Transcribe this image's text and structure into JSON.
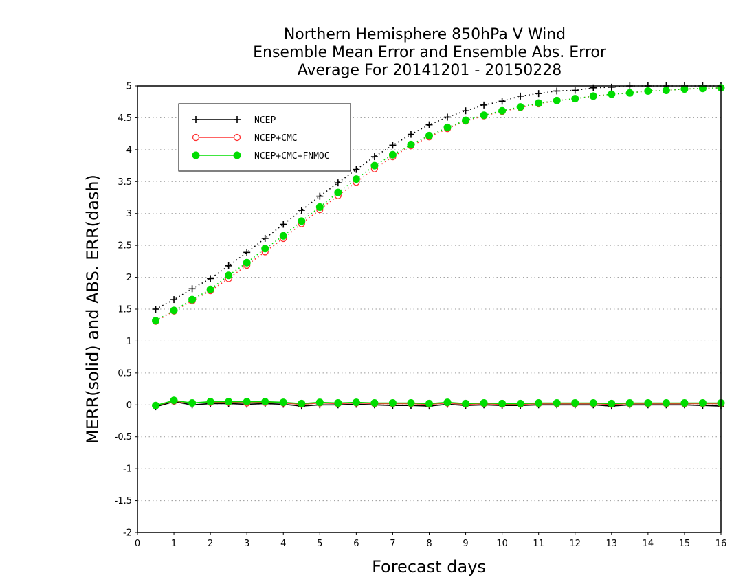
{
  "chart_data": {
    "type": "line",
    "title": [
      "Northern Hemisphere 850hPa V Wind",
      "Ensemble Mean Error and Ensemble Abs. Error",
      "Average For 20141201 - 20150228"
    ],
    "xlabel": "Forecast days",
    "ylabel": "MERR(solid) and ABS. ERR(dash)",
    "xlim": [
      0,
      16
    ],
    "ylim": [
      -2,
      5
    ],
    "xticks": [
      0,
      1,
      2,
      3,
      4,
      5,
      6,
      7,
      8,
      9,
      10,
      11,
      12,
      13,
      14,
      15,
      16
    ],
    "yticks": [
      -2,
      -1.5,
      -1,
      -0.5,
      0,
      0.5,
      1,
      1.5,
      2,
      2.5,
      3,
      3.5,
      4,
      4.5,
      5
    ],
    "ytick_labels": [
      "-2",
      "-1.5",
      "-1",
      "-0.5",
      "0",
      "0.5",
      "1",
      "1.5",
      "2",
      "2.5",
      "3",
      "3.5",
      "4",
      "4.5",
      "5"
    ],
    "grid": "horizontal-dotted",
    "legend_position": "top-left",
    "x": [
      0.5,
      1,
      1.5,
      2,
      2.5,
      3,
      3.5,
      4,
      4.5,
      5,
      5.5,
      6,
      6.5,
      7,
      7.5,
      8,
      8.5,
      9,
      9.5,
      10,
      10.5,
      11,
      11.5,
      12,
      12.5,
      13,
      13.5,
      14,
      14.5,
      15,
      15.5,
      16
    ],
    "series": [
      {
        "name": "NCEP",
        "color": "#000000",
        "marker": "plus",
        "abs_err": [
          1.5,
          1.65,
          1.82,
          1.98,
          2.18,
          2.39,
          2.61,
          2.83,
          3.05,
          3.27,
          3.48,
          3.69,
          3.89,
          4.07,
          4.24,
          4.39,
          4.51,
          4.61,
          4.7,
          4.76,
          4.84,
          4.88,
          4.92,
          4.93,
          4.97,
          4.98,
          5.0,
          5.0,
          5.0,
          5.0,
          5.0,
          5.0
        ],
        "merr": [
          -0.03,
          0.05,
          0.0,
          0.02,
          0.02,
          0.01,
          0.02,
          0.01,
          -0.02,
          0.0,
          0.0,
          0.01,
          0.0,
          -0.01,
          -0.01,
          -0.02,
          0.01,
          -0.01,
          0.0,
          -0.01,
          -0.01,
          0.0,
          0.0,
          0.0,
          0.0,
          -0.02,
          0.0,
          0.0,
          0.0,
          0.0,
          -0.01,
          -0.02
        ]
      },
      {
        "name": "NCEP+CMC",
        "color": "#ff3030",
        "marker": "open-circle",
        "abs_err": [
          1.31,
          1.47,
          1.63,
          1.79,
          1.98,
          2.19,
          2.4,
          2.61,
          2.84,
          3.06,
          3.28,
          3.49,
          3.7,
          3.89,
          4.06,
          4.2,
          4.33,
          4.45,
          4.53,
          4.6,
          4.66,
          4.72,
          4.77,
          4.8,
          4.84,
          4.87,
          4.89,
          4.92,
          4.93,
          4.95,
          4.96,
          4.97
        ],
        "merr": [
          -0.01,
          0.06,
          0.03,
          0.04,
          0.04,
          0.03,
          0.04,
          0.03,
          0.01,
          0.03,
          0.02,
          0.03,
          0.02,
          0.02,
          0.02,
          0.01,
          0.03,
          0.01,
          0.02,
          0.01,
          0.01,
          0.02,
          0.02,
          0.02,
          0.02,
          0.01,
          0.02,
          0.02,
          0.02,
          0.02,
          0.02,
          0.02
        ]
      },
      {
        "name": "NCEP+CMC+FNMOC",
        "color": "#00dd00",
        "marker": "filled-circle",
        "abs_err": [
          1.32,
          1.48,
          1.65,
          1.81,
          2.03,
          2.23,
          2.45,
          2.65,
          2.88,
          3.1,
          3.33,
          3.54,
          3.75,
          3.92,
          4.08,
          4.22,
          4.35,
          4.46,
          4.54,
          4.61,
          4.67,
          4.73,
          4.77,
          4.8,
          4.84,
          4.87,
          4.89,
          4.92,
          4.93,
          4.95,
          4.96,
          4.97
        ],
        "merr": [
          -0.01,
          0.07,
          0.03,
          0.05,
          0.05,
          0.05,
          0.05,
          0.04,
          0.02,
          0.04,
          0.03,
          0.04,
          0.03,
          0.03,
          0.03,
          0.02,
          0.04,
          0.02,
          0.03,
          0.02,
          0.02,
          0.03,
          0.03,
          0.03,
          0.03,
          0.02,
          0.03,
          0.03,
          0.03,
          0.03,
          0.03,
          0.03
        ]
      }
    ]
  }
}
